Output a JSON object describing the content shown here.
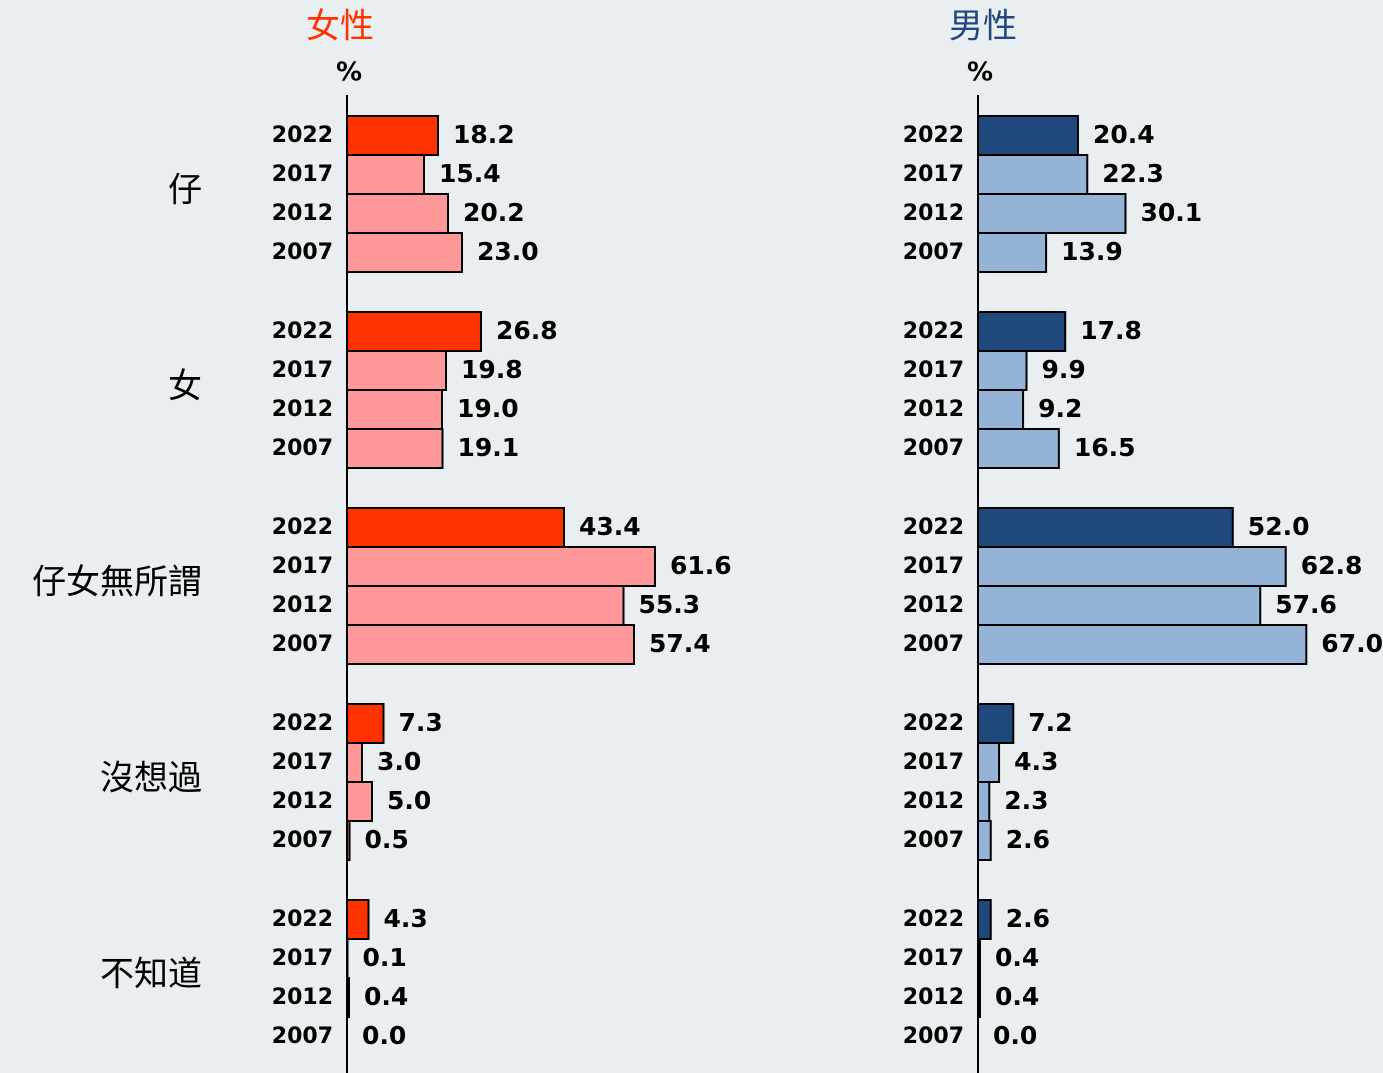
{
  "chart_data": [
    {
      "type": "bar",
      "title": "女性",
      "axis_label": "%",
      "categories": [
        "仔",
        "女",
        "仔女無所謂",
        "沒想過",
        "不知道"
      ],
      "series": [
        {
          "name": "2022",
          "color": "#ff3300",
          "values": [
            18.2,
            26.8,
            43.4,
            7.3,
            4.3
          ],
          "value_labels": [
            "18.2",
            "26.8",
            "43.4",
            "7.3",
            "4.3"
          ]
        },
        {
          "name": "2017",
          "color": "#ff9999",
          "values": [
            15.4,
            19.8,
            61.6,
            3.0,
            0.1
          ],
          "value_labels": [
            "15.4",
            "19.8",
            "61.6",
            "3.0",
            "0.1"
          ]
        },
        {
          "name": "2012",
          "color": "#ff9999",
          "values": [
            20.2,
            19.0,
            55.3,
            5.0,
            0.4
          ],
          "value_labels": [
            "20.2",
            "19.0",
            "55.3",
            "5.0",
            "0.4"
          ]
        },
        {
          "name": "2007",
          "color": "#ff9999",
          "values": [
            23.0,
            19.1,
            57.4,
            0.5,
            0.0
          ],
          "value_labels": [
            "23.0",
            "19.1",
            "57.4",
            "0.5",
            "0.0"
          ]
        }
      ]
    },
    {
      "type": "bar",
      "title": "男性",
      "axis_label": "%",
      "series": [
        {
          "name": "2022",
          "color": "#1f497d",
          "values": [
            20.4,
            17.8,
            52.0,
            7.2,
            2.6
          ],
          "value_labels": [
            "20.4",
            "17.8",
            "52.0",
            "7.2",
            "2.6"
          ]
        },
        {
          "name": "2017",
          "color": "#95b3d7",
          "values": [
            22.3,
            9.9,
            62.8,
            4.3,
            0.4
          ],
          "value_labels": [
            "22.3",
            "9.9",
            "62.8",
            "4.3",
            "0.4"
          ]
        },
        {
          "name": "2012",
          "color": "#95b3d7",
          "values": [
            30.1,
            9.2,
            57.6,
            2.3,
            0.4
          ],
          "value_labels": [
            "30.1",
            "9.2",
            "57.6",
            "2.3",
            "0.4"
          ]
        },
        {
          "name": "2007",
          "color": "#95b3d7",
          "values": [
            13.9,
            16.5,
            67.0,
            2.6,
            0.0
          ],
          "value_labels": [
            "13.9",
            "16.5",
            "67.0",
            "2.6",
            "0.0"
          ]
        }
      ]
    }
  ]
}
